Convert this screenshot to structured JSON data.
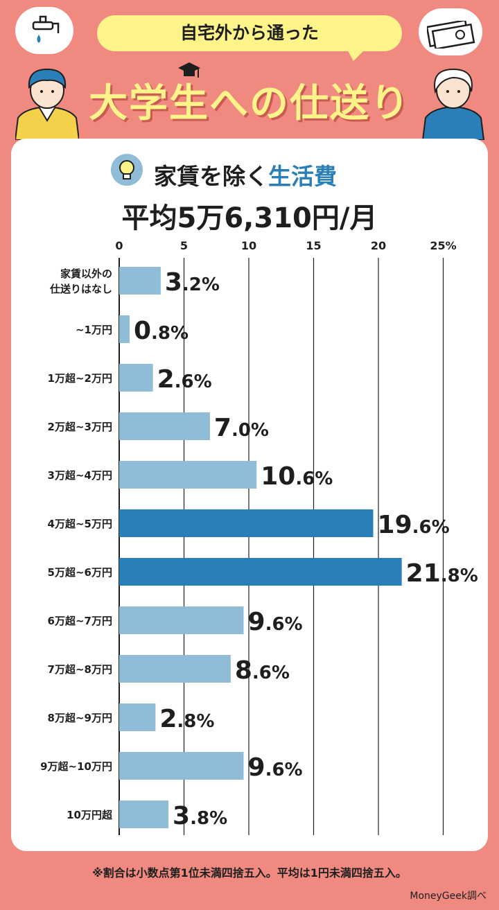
{
  "header": {
    "bubble_text": "自宅外から通った",
    "title": "大学生への仕送り"
  },
  "icons": {
    "faucet": "faucet-icon",
    "money": "money-icon",
    "bulb": "lightbulb-icon",
    "cap": "graduation-cap-icon"
  },
  "subtitle": {
    "part1": "家賃を除く",
    "part2": "生活費"
  },
  "average_text": "平均5万6,310円/月",
  "footnote": "※割合は小数点第1位未満四捨五入。平均は1円未満四捨五入。",
  "credit": "MoneyGeek調べ",
  "colors": {
    "bar": "#8fbcd6",
    "bar_highlight": "#2a7fb8",
    "bg": "#f08a80",
    "accent": "#fff48a"
  },
  "chart_data": {
    "type": "bar",
    "orientation": "horizontal",
    "categories": [
      "家賃以外の\n仕送りはなし",
      "~1万円",
      "1万超~2万円",
      "2万超~3万円",
      "3万超~4万円",
      "4万超~5万円",
      "5万超~6万円",
      "6万超~7万円",
      "7万超~8万円",
      "8万超~9万円",
      "9万超~10万円",
      "10万円超"
    ],
    "values": [
      3.2,
      0.8,
      2.6,
      7.0,
      10.6,
      19.6,
      21.8,
      9.6,
      8.6,
      2.8,
      9.6,
      3.8
    ],
    "labels": [
      "3.2%",
      "0.8%",
      "2.6%",
      "7.0%",
      "10.6%",
      "19.6%",
      "21.8%",
      "9.6%",
      "8.6%",
      "2.8%",
      "9.6%",
      "3.8%"
    ],
    "highlight": [
      5,
      6
    ],
    "xticks": [
      "0",
      "5",
      "10",
      "15",
      "20",
      "25%"
    ],
    "xtick_values": [
      0,
      5,
      10,
      15,
      20,
      25
    ],
    "xlim": [
      0,
      25
    ],
    "grid": true
  }
}
